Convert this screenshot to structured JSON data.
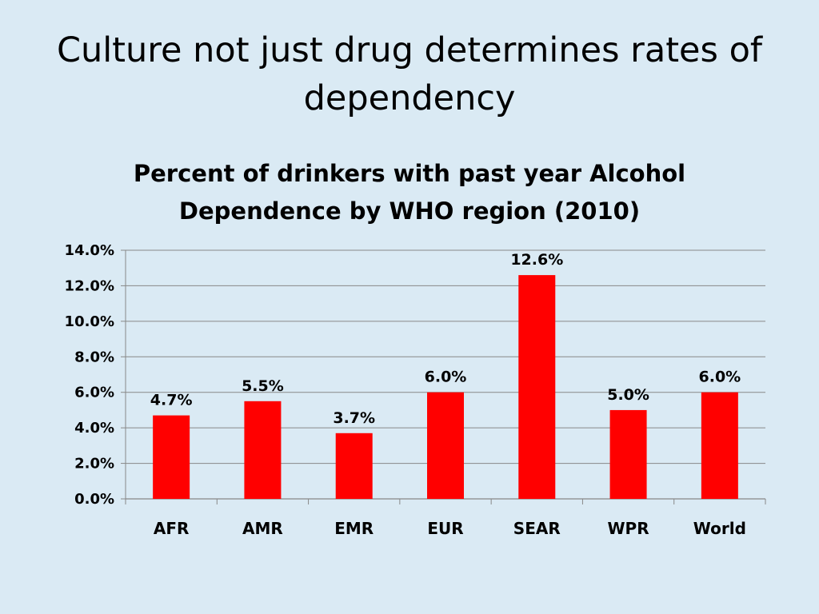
{
  "slide": {
    "title": "Culture not just drug determines rates of dependency"
  },
  "colors": {
    "background": "#daeaf4",
    "bar": "#ff0000",
    "gridline": "#888888",
    "axis": "#888888"
  },
  "chart_data": {
    "type": "bar",
    "title": "Percent of drinkers with past year Alcohol Dependence by WHO region (2010)",
    "categories": [
      "AFR",
      "AMR",
      "EMR",
      "EUR",
      "SEAR",
      "WPR",
      "World"
    ],
    "values": [
      4.7,
      5.5,
      3.7,
      6.0,
      12.6,
      5.0,
      6.0
    ],
    "data_labels": [
      "4.7%",
      "5.5%",
      "3.7%",
      "6.0%",
      "12.6%",
      "5.0%",
      "6.0%"
    ],
    "ylim": [
      0,
      14
    ],
    "yticks": [
      0,
      2,
      4,
      6,
      8,
      10,
      12,
      14
    ],
    "ytick_labels": [
      "0.0%",
      "2.0%",
      "4.0%",
      "6.0%",
      "8.0%",
      "10.0%",
      "12.0%",
      "14.0%"
    ],
    "xlabel": "",
    "ylabel": "",
    "grid": true,
    "legend": false
  }
}
